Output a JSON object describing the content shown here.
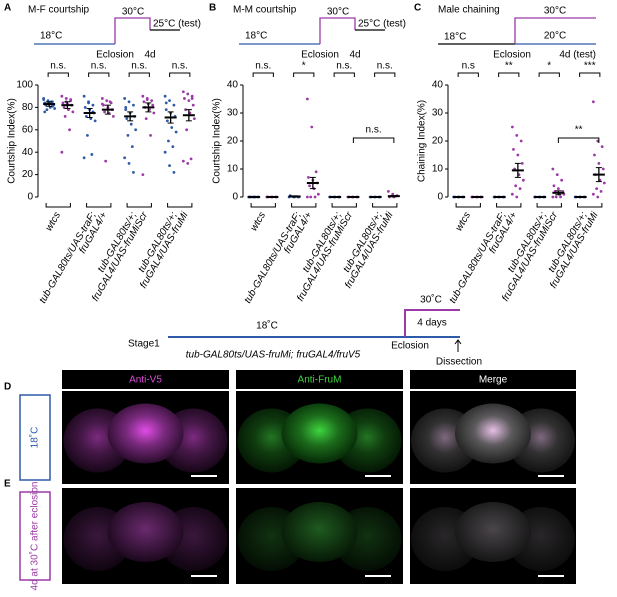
{
  "chart_data": [
    {
      "type": "scatter",
      "panel": "A",
      "title": "M-F courtship",
      "ylabel": "Courtship Index(%)",
      "ylim": [
        0,
        100
      ],
      "yticks": [
        0,
        20,
        40,
        60,
        80,
        100
      ],
      "schematic": {
        "hot": "30°C",
        "test": "25°C (test)",
        "cold": "18°C",
        "eclosion": "Eclosion",
        "day": "4d"
      },
      "categories": [
        [
          "wtcs"
        ],
        [
          "tub-GAL80ts/UAS-traF;",
          "fruGAL4/+"
        ],
        [
          "tub-GAL80ts/+;",
          "fruGAL4/UAS-fruMiScr"
        ],
        [
          "tub-GAL80ts/+;",
          "fruGAL4/UAS-fruMi"
        ]
      ],
      "significance": [
        "n.s.",
        "n.s.",
        "n.s.",
        "n.s."
      ],
      "series": [
        {
          "color": "#2f5aa8",
          "means": [
            83,
            75,
            72,
            71
          ],
          "sems": [
            2,
            4,
            4,
            5
          ],
          "points": [
            [
              88,
              86,
              85,
              84,
              83,
              82,
              82,
              80,
              79,
              78,
              85,
              87,
              84,
              81,
              76
            ],
            [
              90,
              85,
              82,
              80,
              78,
              75,
              72,
              70,
              68,
              55,
              38,
              35,
              84,
              76
            ],
            [
              88,
              85,
              82,
              78,
              75,
              72,
              70,
              65,
              60,
              55,
              45,
              35,
              30,
              22,
              80
            ],
            [
              90,
              86,
              82,
              78,
              75,
              72,
              68,
              62,
              58,
              50,
              45,
              40,
              28,
              22,
              84
            ]
          ]
        },
        {
          "color": "#9c3aa6",
          "means": [
            82,
            78,
            80,
            73
          ],
          "sems": [
            3,
            4,
            4,
            5
          ],
          "points": [
            [
              90,
              88,
              86,
              84,
              83,
              82,
              80,
              78,
              76,
              72,
              60,
              40,
              85,
              87
            ],
            [
              88,
              86,
              84,
              82,
              80,
              78,
              76,
              75,
              72,
              32,
              85,
              83
            ],
            [
              90,
              88,
              86,
              85,
              83,
              82,
              80,
              78,
              75,
              70,
              55,
              20,
              87
            ],
            [
              94,
              92,
              90,
              88,
              86,
              82,
              78,
              75,
              70,
              60,
              34,
              32,
              30,
              88
            ]
          ]
        }
      ]
    },
    {
      "type": "scatter",
      "panel": "B",
      "title": "M-M courtship",
      "ylabel": "Courtship Index(%)",
      "ylim": [
        0,
        40
      ],
      "yticks": [
        0,
        10,
        20,
        30,
        40
      ],
      "schematic": {
        "hot": "30°C",
        "test": "25°C (test)",
        "cold": "18°C",
        "eclosion": "Eclosion",
        "day": "4d"
      },
      "categories": [
        [
          "wtcs"
        ],
        [
          "tub-GAL80ts/UAS-traF;",
          "fruGAL4/+"
        ],
        [
          "tub-GAL80ts/+;",
          "fruGAL4/UAS-fruMiScr"
        ],
        [
          "tub-GAL80ts/+;",
          "fruGAL4/UAS-fruMi"
        ]
      ],
      "significance": [
        "n.s.",
        "*",
        "n.s.",
        "n.s."
      ],
      "extra_significance": "n.s.",
      "series": [
        {
          "color": "#2f5aa8",
          "means": [
            0,
            0.2,
            0,
            0
          ],
          "sems": [
            0,
            0.2,
            0,
            0
          ],
          "points": [
            [
              0,
              0,
              0,
              0,
              0,
              0,
              0,
              0
            ],
            [
              0,
              0,
              0,
              0.5,
              0,
              0
            ],
            [
              0,
              0,
              0,
              0,
              0,
              0
            ],
            [
              0,
              0,
              0,
              0,
              0,
              0
            ]
          ]
        },
        {
          "color": "#9c3aa6",
          "means": [
            0,
            5,
            0,
            0.3
          ],
          "sems": [
            0,
            2,
            0,
            0.2
          ],
          "points": [
            [
              0,
              0,
              0,
              0,
              0,
              0
            ],
            [
              35,
              25,
              9,
              7,
              6,
              5,
              4,
              3,
              1,
              0,
              0,
              0
            ],
            [
              0,
              0,
              0,
              0,
              0,
              0
            ],
            [
              2,
              1,
              0.5,
              0,
              0
            ]
          ]
        }
      ]
    },
    {
      "type": "scatter",
      "panel": "C",
      "title": "Male chaining",
      "ylabel": "Chaining Index(%)",
      "ylim": [
        0,
        40
      ],
      "yticks": [
        0,
        10,
        20,
        30,
        40
      ],
      "schematic": {
        "hot": "30°C",
        "low": "20°C",
        "cold": "18°C",
        "eclosion": "Eclosion",
        "day": "4d (test)"
      },
      "categories": [
        [
          "wtcs"
        ],
        [
          "tub-GAL80ts/UAS-traF;",
          "fruGAL4/+"
        ],
        [
          "tub-GAL80ts/+;",
          "fruGAL4/UAS-fruMiScr"
        ],
        [
          "tub-GAL80ts/+;",
          "fruGAL4/UAS-fruMi"
        ]
      ],
      "significance": [
        "n.s",
        "**",
        "*",
        "***"
      ],
      "extra_significance": "**",
      "series": [
        {
          "color": "#2f5aa8",
          "means": [
            0,
            0,
            0,
            0
          ],
          "sems": [
            0,
            0,
            0,
            0
          ],
          "points": [
            [
              0,
              0,
              0,
              0,
              0,
              0
            ],
            [
              0,
              0,
              0,
              0,
              0,
              0
            ],
            [
              0,
              0,
              0,
              0,
              0,
              0
            ],
            [
              0,
              0,
              0,
              0,
              0,
              0
            ]
          ]
        },
        {
          "color": "#9c3aa6",
          "means": [
            0,
            9.5,
            1.5,
            8
          ],
          "sems": [
            0,
            2.5,
            0.7,
            2.5
          ],
          "points": [
            [
              0,
              0,
              0,
              0,
              0,
              0
            ],
            [
              25,
              22,
              20,
              17,
              15,
              12,
              10,
              8,
              6,
              4,
              3,
              1,
              0
            ],
            [
              10,
              8,
              6,
              4,
              3,
              2,
              2,
              1,
              1,
              0,
              0,
              0
            ],
            [
              34,
              20,
              18,
              15,
              12,
              10,
              8,
              6,
              5,
              3,
              2,
              1,
              0
            ]
          ]
        }
      ]
    }
  ],
  "timeline": {
    "hot": "30˚C",
    "duration": "4 days",
    "cold": "18˚C",
    "start": "Stage1",
    "eclosion": "Eclosion",
    "end": "Dissection",
    "genotype": "tub-GAL80ts/UAS-fruMi; fruGAL4/fruV5"
  },
  "imaging": {
    "columns": [
      "Anti-V5",
      "Anti-FruM",
      "Merge"
    ],
    "rows": [
      {
        "panel": "D",
        "label": "18˚C"
      },
      {
        "panel": "E",
        "label": "4d at 30˚C after eclosion"
      }
    ]
  }
}
